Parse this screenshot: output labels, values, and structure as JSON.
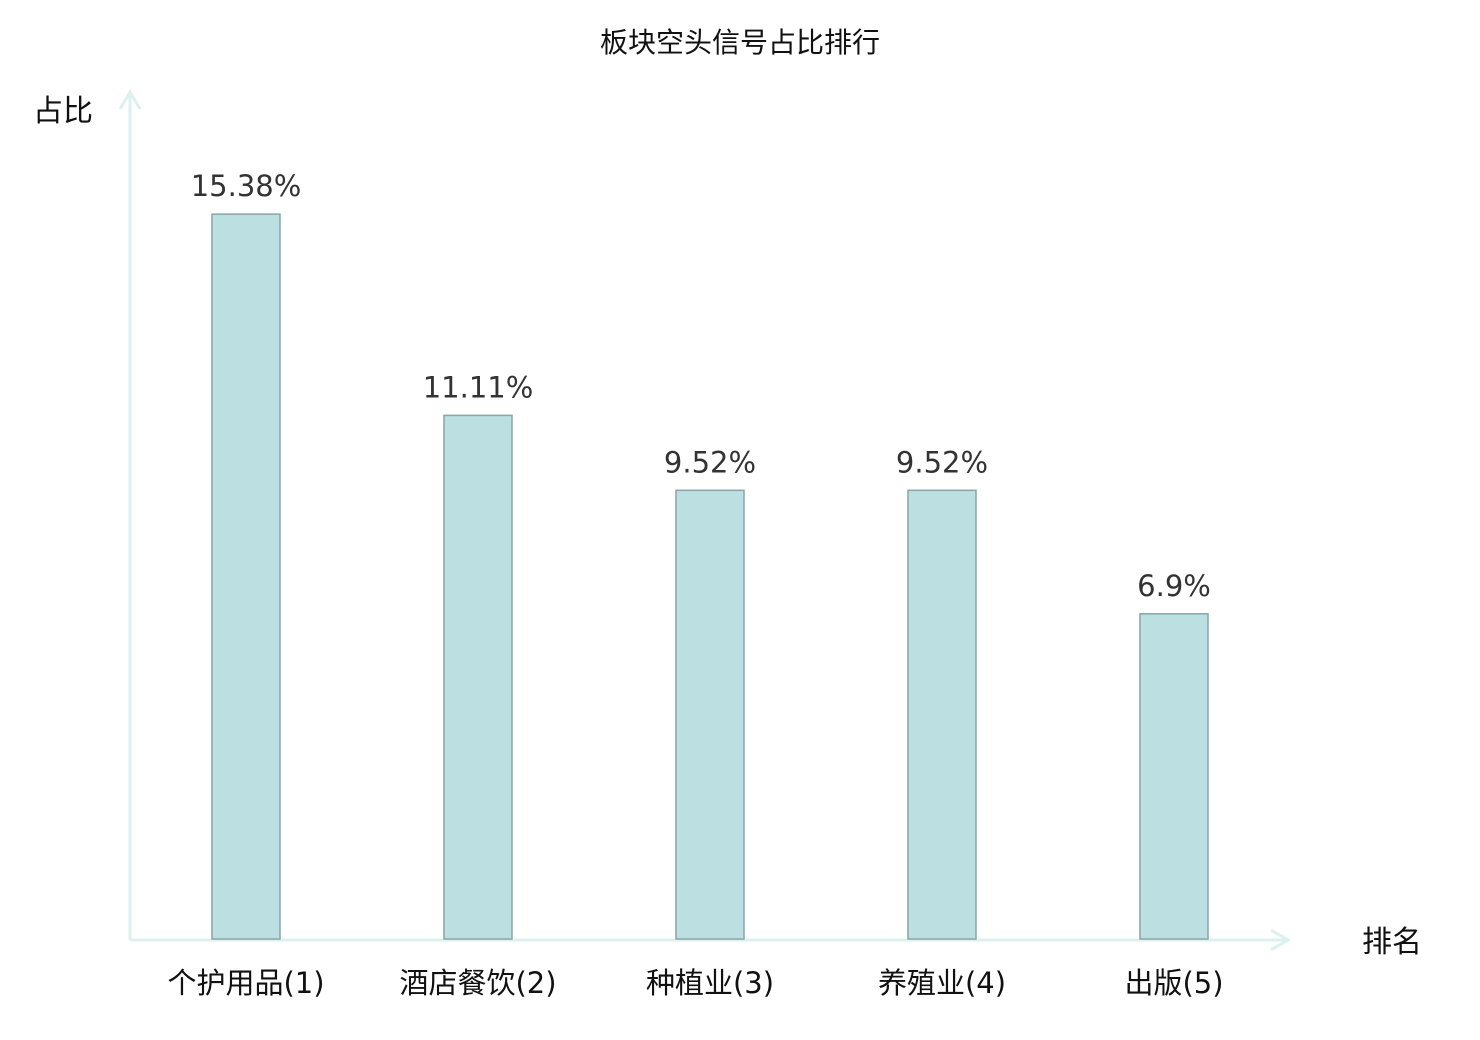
{
  "chart_data": {
    "type": "bar",
    "title": "板块空头信号占比排行",
    "ylabel": "占比",
    "xlabel": "排名",
    "categories": [
      "个护用品",
      "酒店餐饮",
      "种植业",
      "养殖业",
      "出版"
    ],
    "rank_labels": [
      "(1)",
      "(2)",
      "(3)",
      "(4)",
      "(5)"
    ],
    "value_labels": [
      "15.38%",
      "11.11%",
      "9.52%",
      "9.52%",
      "6.9%"
    ],
    "values": [
      15.38,
      11.11,
      9.52,
      9.52,
      6.9
    ],
    "unit": "%",
    "highlight_index": 0,
    "grid": false,
    "legend": "none"
  },
  "colors": {
    "bar_fill": "#bce0e1",
    "bar_stroke": "#86a5a6",
    "axis": "#dcf1ef",
    "highlight_text": "#e0201b",
    "text": "#111111",
    "value_text": "#333333"
  }
}
